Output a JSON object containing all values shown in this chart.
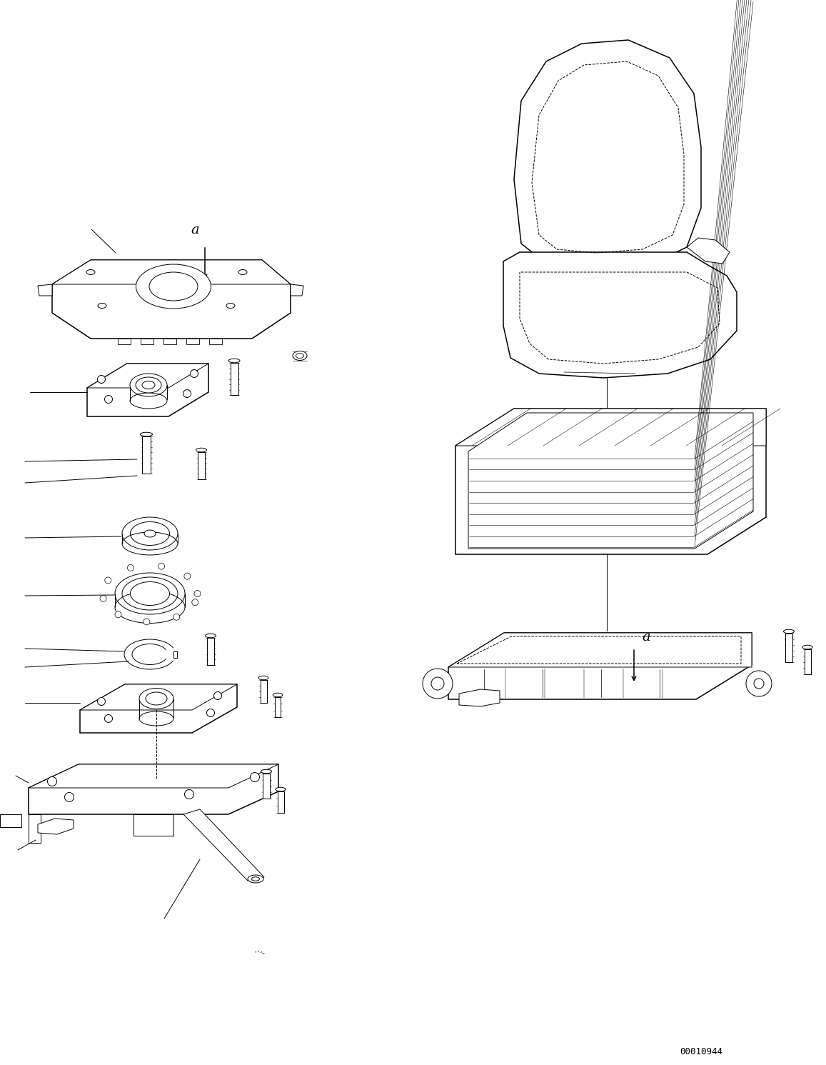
{
  "bg_color": "#ffffff",
  "line_color": "#000000",
  "fig_width": 11.57,
  "fig_height": 14.91,
  "dpi": 100,
  "watermark": "00010944"
}
